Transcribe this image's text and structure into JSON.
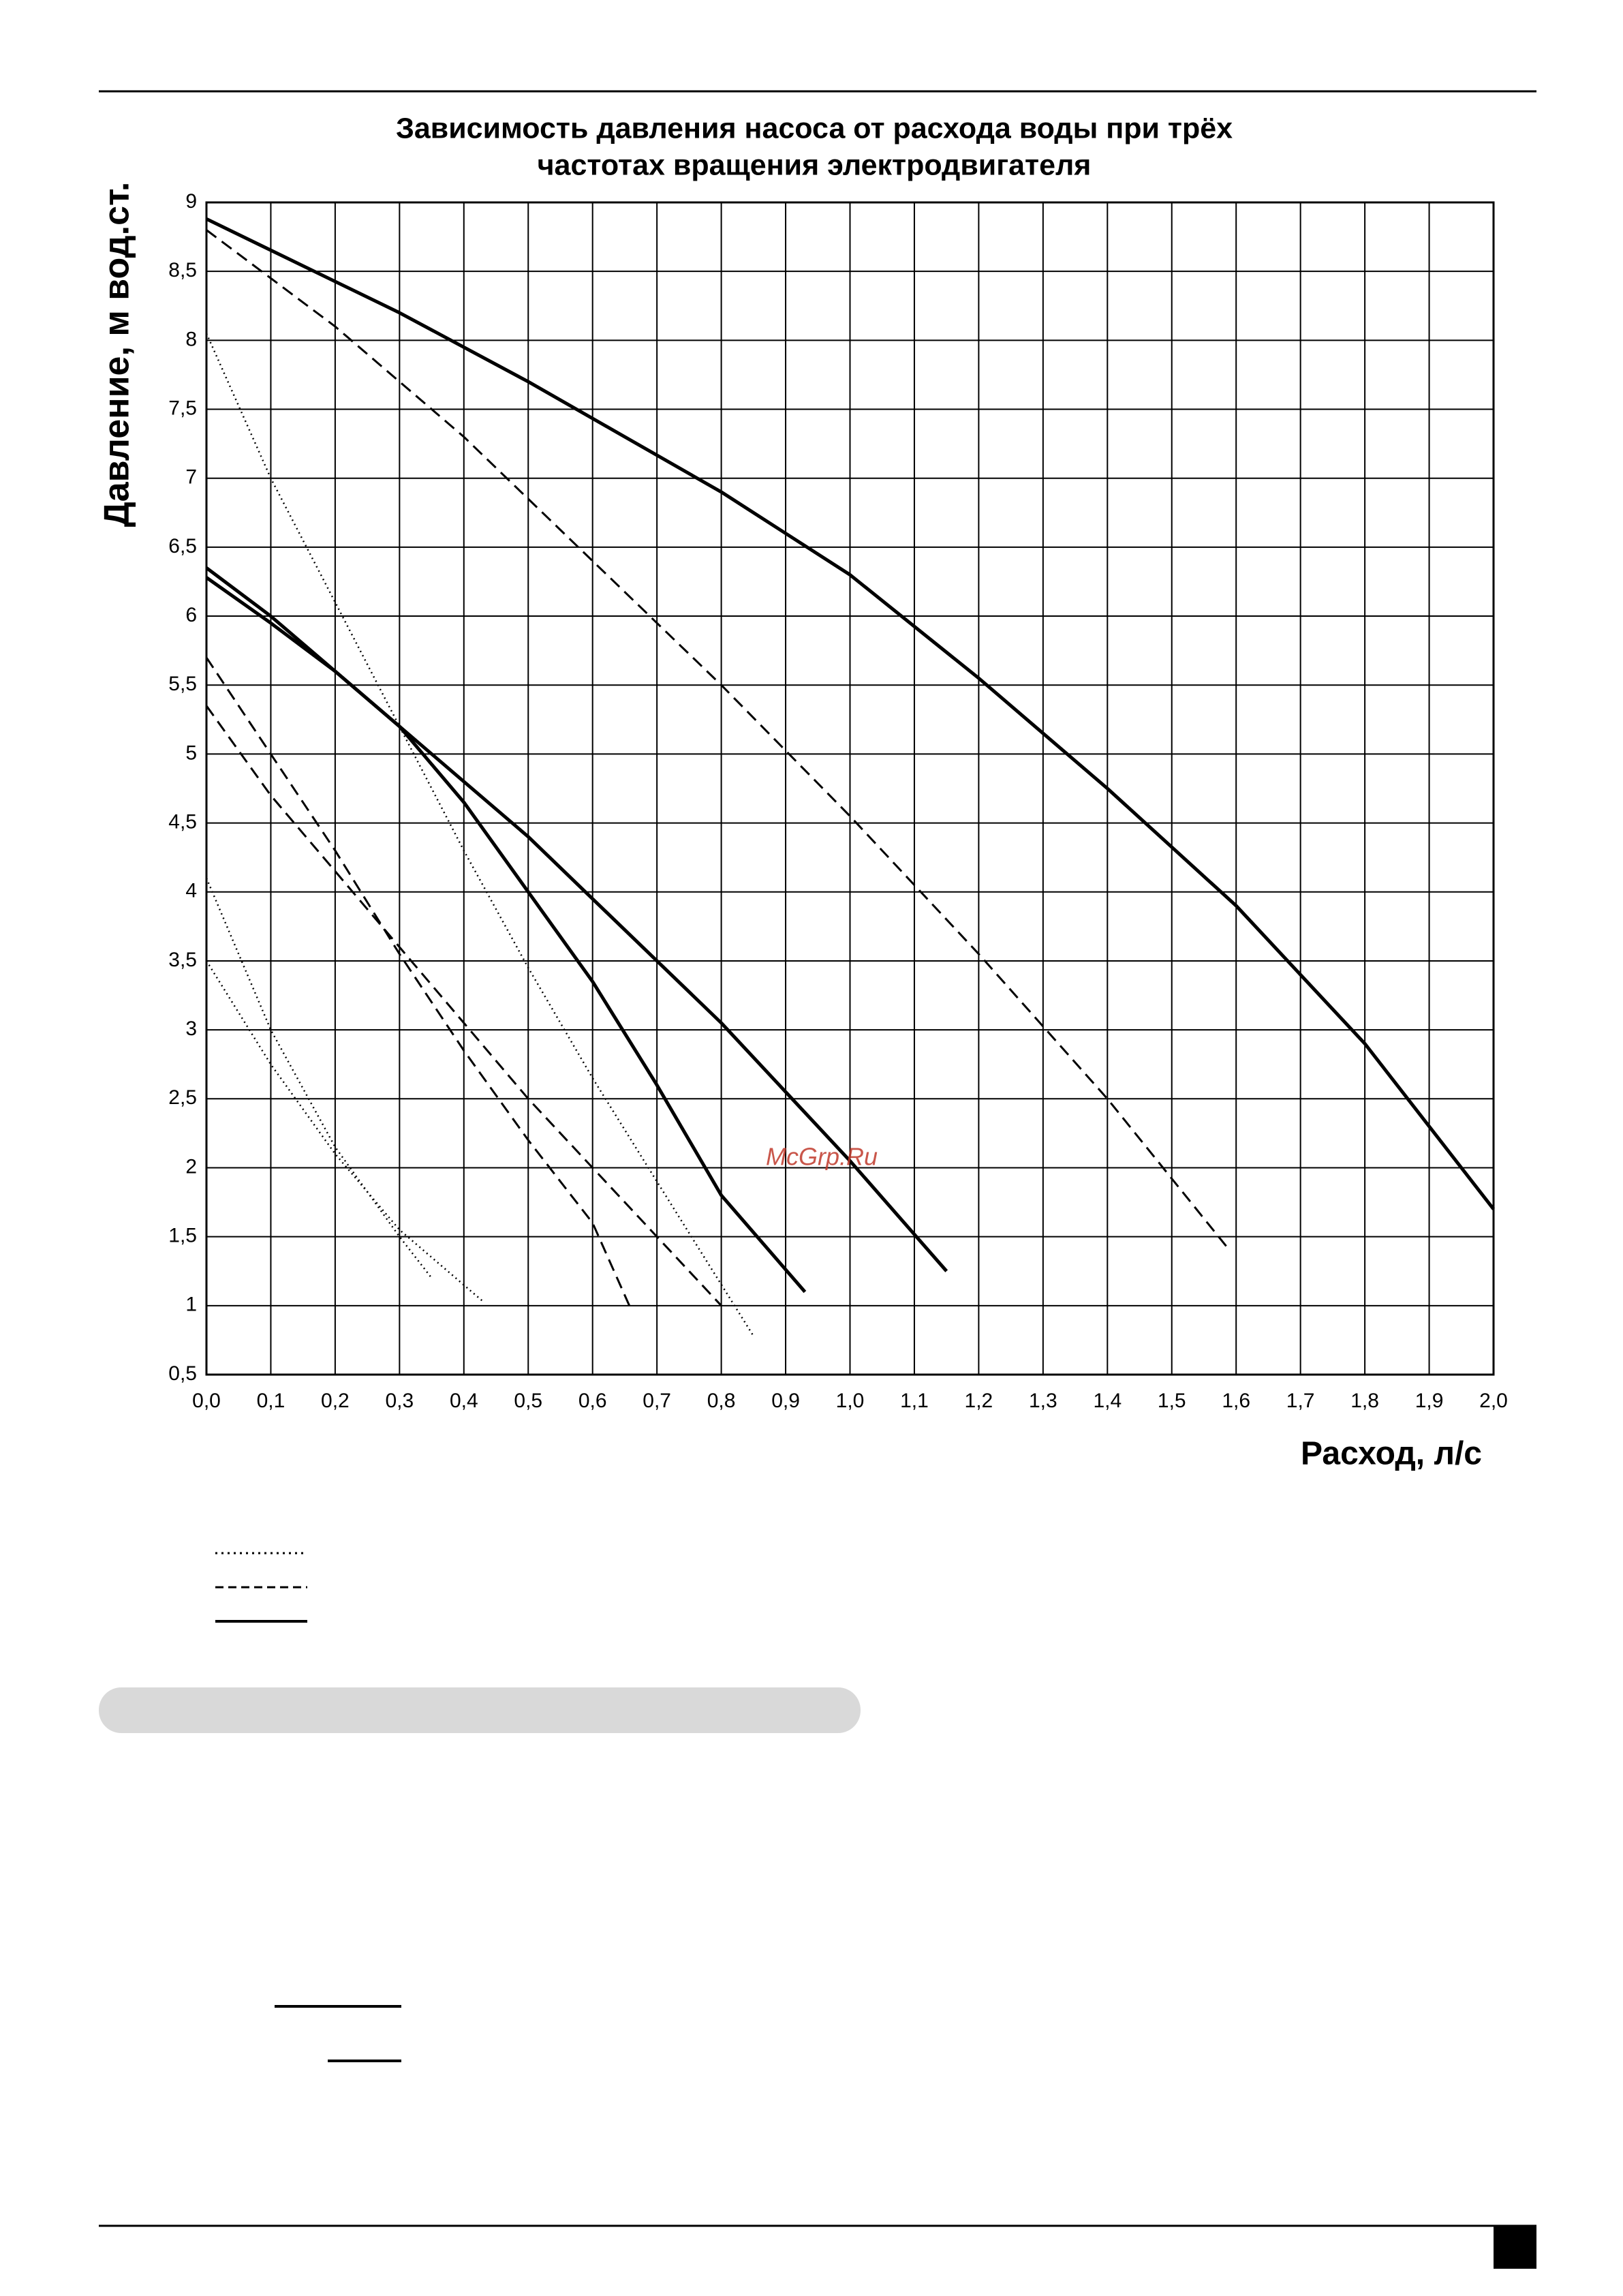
{
  "chart_data": {
    "type": "line",
    "title": "Зависимость давления насоса от расхода воды при трёх",
    "subtitle": "частотах вращения электродвигателя",
    "x_label": "Расход, л/с",
    "y_label": "Давление, м вод.ст.",
    "annotation": "McGrp.Ru",
    "grid": true,
    "xlim": [
      0,
      2.0
    ],
    "ylim": [
      0.5,
      9
    ],
    "xticks": [
      {
        "value": 0,
        "label": "0,0"
      },
      {
        "value": 0.1,
        "label": "0,1"
      },
      {
        "value": 0.2,
        "label": "0,2"
      },
      {
        "value": 0.3,
        "label": "0,3"
      },
      {
        "value": 0.4,
        "label": "0,4"
      },
      {
        "value": 0.5,
        "label": "0,5"
      },
      {
        "value": 0.6,
        "label": "0,6"
      },
      {
        "value": 0.7,
        "label": "0,7"
      },
      {
        "value": 0.8,
        "label": "0,8"
      },
      {
        "value": 0.9,
        "label": "0,9"
      },
      {
        "value": 1.0,
        "label": "1,0"
      },
      {
        "value": 1.1,
        "label": "1,1"
      },
      {
        "value": 1.2,
        "label": "1,2"
      },
      {
        "value": 1.3,
        "label": "1,3"
      },
      {
        "value": 1.4,
        "label": "1,4"
      },
      {
        "value": 1.5,
        "label": "1,5"
      },
      {
        "value": 1.6,
        "label": "1,6"
      },
      {
        "value": 1.7,
        "label": "1,7"
      },
      {
        "value": 1.8,
        "label": "1,8"
      },
      {
        "value": 1.9,
        "label": "1,9"
      },
      {
        "value": 2.0,
        "label": "2,0"
      }
    ],
    "yticks": [
      {
        "value": 0.5,
        "label": "0,5"
      },
      1,
      {
        "value": 1.5,
        "label": "1,5"
      },
      2,
      {
        "value": 2.5,
        "label": "2,5"
      },
      3,
      {
        "value": 3.5,
        "label": "3,5"
      },
      4,
      {
        "value": 4.5,
        "label": "4,5"
      },
      5,
      {
        "value": 5.5,
        "label": "5,5"
      },
      6,
      {
        "value": 6.5,
        "label": "6,5"
      },
      7,
      {
        "value": 7.5,
        "label": "7,5"
      },
      8,
      {
        "value": 8.5,
        "label": "8,5"
      },
      9
    ],
    "series": [
      {
        "color": "#000000",
        "dash": "solid",
        "x": [
          0,
          0.3,
          0.5,
          0.8,
          1.0,
          1.2,
          1.4,
          1.6,
          1.8,
          2.0
        ],
        "values": [
          8.88,
          8.2,
          7.7,
          6.9,
          6.3,
          5.55,
          4.75,
          3.9,
          2.9,
          1.7
        ]
      },
      {
        "color": "#000000",
        "dash": "dashed",
        "x": [
          0,
          0.2,
          0.4,
          0.6,
          0.8,
          1.0,
          1.2,
          1.4,
          1.59
        ],
        "values": [
          8.8,
          8.1,
          7.3,
          6.4,
          5.5,
          4.55,
          3.55,
          2.5,
          1.4
        ]
      },
      {
        "color": "#000000",
        "dash": "solid",
        "x": [
          0,
          0.1,
          0.2,
          0.3,
          0.4,
          0.5,
          0.6,
          0.8,
          1.0,
          1.15
        ],
        "values": [
          6.35,
          6.0,
          5.6,
          5.2,
          4.8,
          4.4,
          3.95,
          3.05,
          2.05,
          1.25
        ]
      },
      {
        "color": "#000000",
        "dash": "solid",
        "x": [
          0,
          0.1,
          0.2,
          0.3,
          0.4,
          0.5,
          0.6,
          0.7,
          0.8,
          0.93
        ],
        "values": [
          6.28,
          5.95,
          5.6,
          5.2,
          4.65,
          4.0,
          3.35,
          2.6,
          1.8,
          1.1
        ]
      },
      {
        "color": "#000000",
        "dash": "dotted",
        "x": [
          0,
          0.1,
          0.2,
          0.3,
          0.4,
          0.5,
          0.6,
          0.7,
          0.85
        ],
        "values": [
          8.05,
          7.0,
          6.1,
          5.2,
          4.3,
          3.45,
          2.65,
          1.9,
          0.78
        ]
      },
      {
        "color": "#000000",
        "dash": "dashed",
        "x": [
          0,
          0.1,
          0.2,
          0.3,
          0.4,
          0.5,
          0.6,
          0.66
        ],
        "values": [
          5.7,
          5.0,
          4.3,
          3.55,
          2.85,
          2.2,
          1.6,
          0.97
        ]
      },
      {
        "color": "#000000",
        "dash": "dashed",
        "x": [
          0,
          0.1,
          0.2,
          0.3,
          0.4,
          0.5,
          0.6,
          0.7,
          0.8
        ],
        "values": [
          5.35,
          4.7,
          4.15,
          3.6,
          3.05,
          2.5,
          2.0,
          1.5,
          1.0
        ]
      },
      {
        "color": "#000000",
        "dash": "dotted",
        "x": [
          0,
          0.1,
          0.2,
          0.3,
          0.35
        ],
        "values": [
          4.1,
          3.0,
          2.15,
          1.5,
          1.2
        ]
      },
      {
        "color": "#000000",
        "dash": "dotted",
        "x": [
          0,
          0.1,
          0.2,
          0.3,
          0.43
        ],
        "values": [
          3.5,
          2.75,
          2.1,
          1.55,
          1.03
        ]
      }
    ]
  }
}
